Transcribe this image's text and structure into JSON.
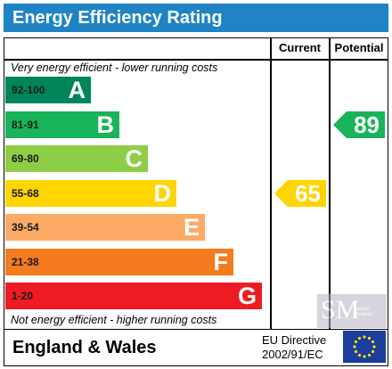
{
  "title": "Energy Efficiency Rating",
  "columns": {
    "current": "Current",
    "potential": "Potential"
  },
  "notes": {
    "top": "Very energy efficient - lower running costs",
    "bottom": "Not energy efficient - higher running costs"
  },
  "footer": {
    "region": "England & Wales",
    "directive_line1": "EU Directive",
    "directive_line2": "2002/91/EC"
  },
  "watermark": {
    "logo": "SM",
    "text": "Spencer Michaels"
  },
  "chart_data": {
    "type": "bar",
    "title": "Energy Efficiency Rating",
    "categories": [
      "A",
      "B",
      "C",
      "D",
      "E",
      "F",
      "G"
    ],
    "ranges": [
      "92-100",
      "81-91",
      "69-80",
      "55-68",
      "39-54",
      "21-38",
      "1-20"
    ],
    "colors": [
      "#00845a",
      "#19b459",
      "#8dce46",
      "#ffd500",
      "#fcaa65",
      "#f47b20",
      "#ed1c24"
    ],
    "current": {
      "label": "Current",
      "value": 65,
      "band": "D"
    },
    "potential": {
      "label": "Potential",
      "value": 89,
      "band": "B"
    }
  }
}
